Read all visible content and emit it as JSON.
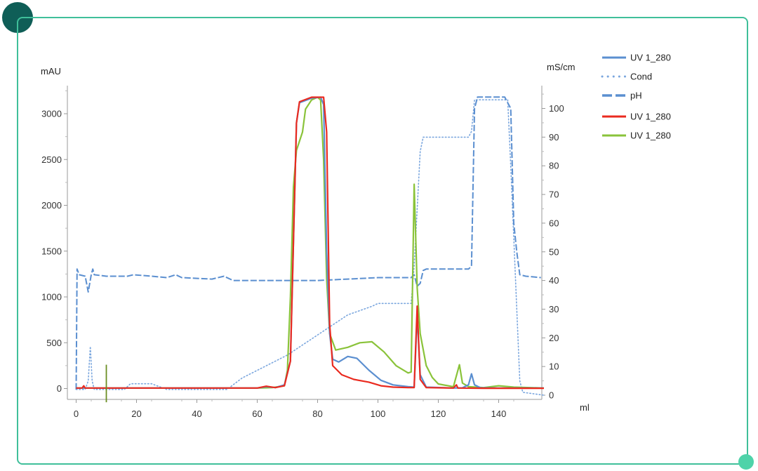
{
  "chart_data": {
    "type": "line",
    "xlabel": "ml",
    "ylabel_left": "mAU",
    "ylabel_right": "mS/cm",
    "xlim": [
      0,
      155
    ],
    "ylim_left": [
      -100,
      3300
    ],
    "ylim_right": [
      -2,
      108
    ],
    "xticks": [
      0,
      20,
      40,
      60,
      80,
      100,
      120,
      140
    ],
    "yticks_left": [
      0,
      500,
      1000,
      1500,
      2000,
      2500,
      3000
    ],
    "yticks_right": [
      0,
      10,
      20,
      30,
      40,
      50,
      60,
      70,
      80,
      90,
      100
    ],
    "legend_position": "top-right, outside",
    "series": [
      {
        "name": "UV 1_280",
        "axis": "left",
        "color": "#5b8fd0",
        "style": "solid",
        "points": [
          [
            0,
            5
          ],
          [
            60,
            5
          ],
          [
            63,
            20
          ],
          [
            66,
            10
          ],
          [
            69,
            40
          ],
          [
            71,
            300
          ],
          [
            72,
            1600
          ],
          [
            73,
            2900
          ],
          [
            74,
            3120
          ],
          [
            78,
            3170
          ],
          [
            81,
            3180
          ],
          [
            82,
            3100
          ],
          [
            83,
            1500
          ],
          [
            84,
            600
          ],
          [
            85,
            320
          ],
          [
            87,
            290
          ],
          [
            90,
            350
          ],
          [
            93,
            330
          ],
          [
            97,
            200
          ],
          [
            101,
            90
          ],
          [
            105,
            40
          ],
          [
            110,
            20
          ],
          [
            112,
            15
          ],
          [
            113,
            800
          ],
          [
            114,
            150
          ],
          [
            116,
            15
          ],
          [
            125,
            5
          ],
          [
            128,
            8
          ],
          [
            130,
            40
          ],
          [
            131,
            160
          ],
          [
            132,
            40
          ],
          [
            134,
            8
          ],
          [
            140,
            5
          ],
          [
            155,
            5
          ]
        ]
      },
      {
        "name": "Cond",
        "axis": "right",
        "color": "#7aa6de",
        "style": "dotted",
        "points": [
          [
            0,
            2
          ],
          [
            3,
            2
          ],
          [
            4,
            5
          ],
          [
            4.7,
            17
          ],
          [
            5.3,
            5
          ],
          [
            6,
            2
          ],
          [
            16,
            2
          ],
          [
            18,
            4
          ],
          [
            25,
            4
          ],
          [
            30,
            2
          ],
          [
            50,
            2
          ],
          [
            55,
            6
          ],
          [
            70,
            14
          ],
          [
            80,
            21
          ],
          [
            90,
            28
          ],
          [
            98,
            31
          ],
          [
            100,
            32
          ],
          [
            111,
            32
          ],
          [
            112,
            45
          ],
          [
            114,
            85
          ],
          [
            115,
            90
          ],
          [
            125,
            90
          ],
          [
            130,
            90
          ],
          [
            131,
            92
          ],
          [
            132,
            103
          ],
          [
            143,
            103
          ],
          [
            144,
            80
          ],
          [
            146,
            30
          ],
          [
            147,
            5
          ],
          [
            148,
            1
          ],
          [
            155,
            0
          ]
        ]
      },
      {
        "name": "pH",
        "axis": "right",
        "color": "#5b8fd0",
        "style": "dashed",
        "points": [
          [
            0,
            2
          ],
          [
            0.3,
            44
          ],
          [
            1,
            42
          ],
          [
            3,
            41.5
          ],
          [
            4,
            36
          ],
          [
            5,
            42
          ],
          [
            5.5,
            44
          ],
          [
            6,
            42
          ],
          [
            10,
            41.5
          ],
          [
            17,
            41.5
          ],
          [
            19,
            42
          ],
          [
            25,
            41.5
          ],
          [
            30,
            41
          ],
          [
            33,
            42
          ],
          [
            35,
            41
          ],
          [
            45,
            40.5
          ],
          [
            49,
            41.5
          ],
          [
            52,
            40
          ],
          [
            72,
            40
          ],
          [
            80,
            40
          ],
          [
            90,
            40.5
          ],
          [
            100,
            41
          ],
          [
            111,
            41
          ],
          [
            112,
            42
          ],
          [
            113,
            38
          ],
          [
            114,
            39
          ],
          [
            115,
            43.5
          ],
          [
            116,
            44
          ],
          [
            130,
            44
          ],
          [
            131,
            45
          ],
          [
            132,
            100
          ],
          [
            133,
            104
          ],
          [
            142,
            104
          ],
          [
            144,
            100
          ],
          [
            145,
            60
          ],
          [
            146,
            50
          ],
          [
            147,
            42
          ],
          [
            149,
            41.5
          ],
          [
            154,
            41
          ]
        ]
      },
      {
        "name": "UV 1_280",
        "axis": "left",
        "color": "#ea2a1f",
        "style": "solid",
        "points": [
          [
            0,
            5
          ],
          [
            2,
            5
          ],
          [
            2.5,
            30
          ],
          [
            3,
            5
          ],
          [
            60,
            5
          ],
          [
            63,
            25
          ],
          [
            66,
            10
          ],
          [
            69,
            30
          ],
          [
            71,
            300
          ],
          [
            72,
            1600
          ],
          [
            73,
            2900
          ],
          [
            74,
            3130
          ],
          [
            78,
            3180
          ],
          [
            82,
            3180
          ],
          [
            83,
            2800
          ],
          [
            84,
            700
          ],
          [
            85,
            250
          ],
          [
            88,
            150
          ],
          [
            92,
            100
          ],
          [
            97,
            70
          ],
          [
            101,
            30
          ],
          [
            105,
            15
          ],
          [
            110,
            10
          ],
          [
            112,
            10
          ],
          [
            113,
            900
          ],
          [
            114,
            100
          ],
          [
            116,
            10
          ],
          [
            125,
            5
          ],
          [
            126,
            40
          ],
          [
            126.5,
            5
          ],
          [
            135,
            3
          ],
          [
            155,
            3
          ]
        ]
      },
      {
        "name": "UV 1_280",
        "axis": "left",
        "color": "#8ac33a",
        "style": "solid",
        "points": [
          [
            0,
            5
          ],
          [
            60,
            5
          ],
          [
            65,
            10
          ],
          [
            69,
            30
          ],
          [
            70,
            200
          ],
          [
            71,
            1000
          ],
          [
            72,
            2200
          ],
          [
            73,
            2600
          ],
          [
            75,
            2800
          ],
          [
            76,
            3050
          ],
          [
            78,
            3150
          ],
          [
            80,
            3180
          ],
          [
            81,
            3150
          ],
          [
            82,
            2500
          ],
          [
            83,
            1200
          ],
          [
            84,
            600
          ],
          [
            86,
            420
          ],
          [
            90,
            450
          ],
          [
            94,
            500
          ],
          [
            98,
            510
          ],
          [
            102,
            400
          ],
          [
            106,
            250
          ],
          [
            110,
            170
          ],
          [
            111,
            180
          ],
          [
            112,
            2230
          ],
          [
            113,
            1100
          ],
          [
            114,
            600
          ],
          [
            116,
            250
          ],
          [
            118,
            120
          ],
          [
            120,
            50
          ],
          [
            125,
            20
          ],
          [
            127,
            260
          ],
          [
            128,
            60
          ],
          [
            130,
            20
          ],
          [
            135,
            10
          ],
          [
            140,
            30
          ],
          [
            145,
            15
          ],
          [
            155,
            5
          ]
        ]
      }
    ],
    "vertical_markers": [
      {
        "x": 10,
        "y_top": 260,
        "y_bottom": -150,
        "color": "#6b8e23"
      }
    ]
  }
}
